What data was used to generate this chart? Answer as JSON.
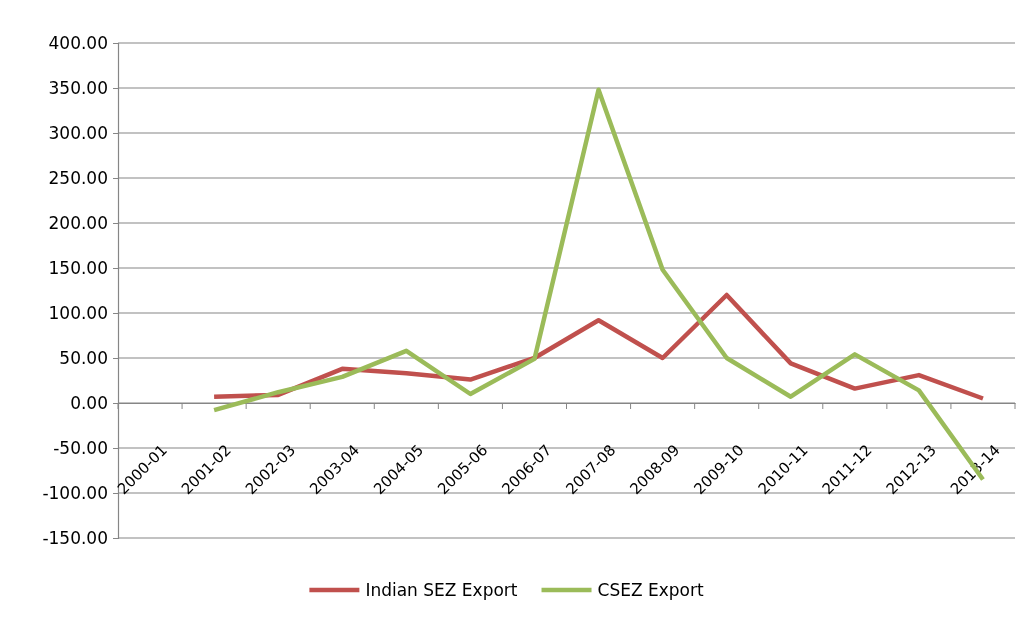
{
  "chart_data": {
    "type": "line",
    "categories": [
      "2000-01",
      "2001-02",
      "2002-03",
      "2003-04",
      "2004-05",
      "2005-06",
      "2006-07",
      "2007-08",
      "2008-09",
      "2009-10",
      "2010-11",
      "2011-12",
      "2012-13",
      "2013-14"
    ],
    "series": [
      {
        "name": "Indian SEZ Export",
        "color": "#c0504d",
        "values": [
          null,
          7,
          9,
          38,
          33,
          26,
          50,
          92,
          50,
          120,
          44,
          16,
          31,
          5
        ]
      },
      {
        "name": "CSEZ Export",
        "color": "#9bbb59",
        "values": [
          null,
          -8,
          12,
          29,
          58,
          10,
          49,
          348,
          148,
          50,
          7,
          54,
          14,
          -85
        ]
      }
    ],
    "ylim": [
      -150,
      400
    ],
    "yticks": [
      {
        "value": -150,
        "label": "-150.00"
      },
      {
        "value": -100,
        "label": "-100.00"
      },
      {
        "value": -50,
        "label": "-50.00"
      },
      {
        "value": 0,
        "label": "0.00"
      },
      {
        "value": 50,
        "label": "50.00"
      },
      {
        "value": 100,
        "label": "100.00"
      },
      {
        "value": 150,
        "label": "150.00"
      },
      {
        "value": 200,
        "label": "200.00"
      },
      {
        "value": 250,
        "label": "250.00"
      },
      {
        "value": 300,
        "label": "300.00"
      },
      {
        "value": 350,
        "label": "350.00"
      },
      {
        "value": 400,
        "label": "400.00"
      }
    ],
    "grid": "y",
    "legend": "bottom",
    "marker": "none",
    "line_style": "solid"
  }
}
